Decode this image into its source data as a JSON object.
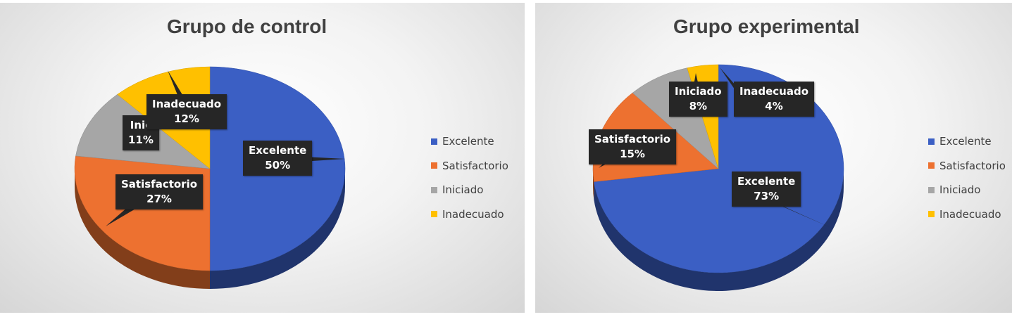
{
  "chart_data": [
    {
      "type": "pie",
      "title": "Grupo de control",
      "categories": [
        "Excelente",
        "Satisfactorio",
        "Iniciado",
        "Inadecuado"
      ],
      "values": [
        50,
        27,
        11,
        12
      ],
      "data_labels": [
        {
          "name": "Excelente",
          "value": "50%"
        },
        {
          "name": "Satisfactorio",
          "value": "27%"
        },
        {
          "name": "Inic",
          "value": "11%"
        },
        {
          "name": "Inadecuado",
          "value": "12%"
        }
      ],
      "colors": [
        "#3b5fc4",
        "#ed7130",
        "#a6a6a6",
        "#ffc000"
      ],
      "legend": "right"
    },
    {
      "type": "pie",
      "title": "Grupo experimental",
      "categories": [
        "Excelente",
        "Satisfactorio",
        "Iniciado",
        "Inadecuado"
      ],
      "values": [
        73,
        15,
        8,
        4
      ],
      "data_labels": [
        {
          "name": "Excelente",
          "value": "73%"
        },
        {
          "name": "Satisfactorio",
          "value": "15%"
        },
        {
          "name": "Iniciado",
          "value": "8%"
        },
        {
          "name": "Inadecuado",
          "value": "4%"
        }
      ],
      "colors": [
        "#3b5fc4",
        "#ed7130",
        "#a6a6a6",
        "#ffc000"
      ],
      "legend": "right"
    }
  ]
}
